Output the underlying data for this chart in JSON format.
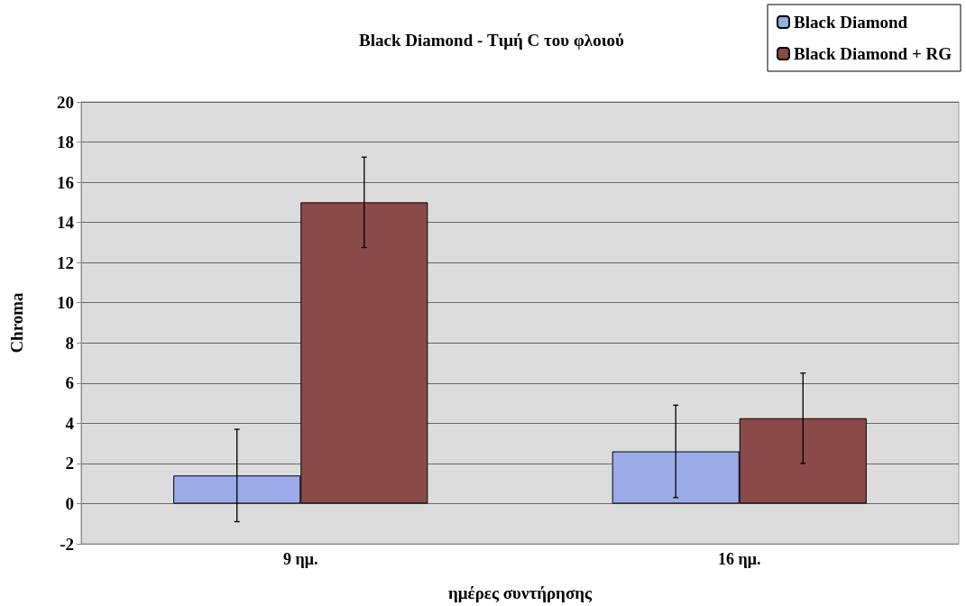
{
  "chart_data": {
    "type": "bar",
    "title": "Black Diamond - Τιμή C του φλοιού",
    "xlabel": "ημέρες συντήρησης",
    "ylabel": "Chroma",
    "categories": [
      "9 ημ.",
      "16 ημ."
    ],
    "series": [
      {
        "name": "Black Diamond",
        "color": "#9aabe8",
        "values": [
          1.4,
          2.6
        ],
        "errors": [
          2.3,
          2.3
        ]
      },
      {
        "name": "Black Diamond + RG",
        "color": "#8b4a4a",
        "values": [
          15.0,
          4.25
        ],
        "errors": [
          2.25,
          2.25
        ]
      }
    ],
    "ylim": [
      -2,
      20
    ],
    "yticks": [
      -2,
      0,
      2,
      4,
      6,
      8,
      10,
      12,
      14,
      16,
      18,
      20
    ],
    "grid": "y",
    "legend": "top right"
  }
}
